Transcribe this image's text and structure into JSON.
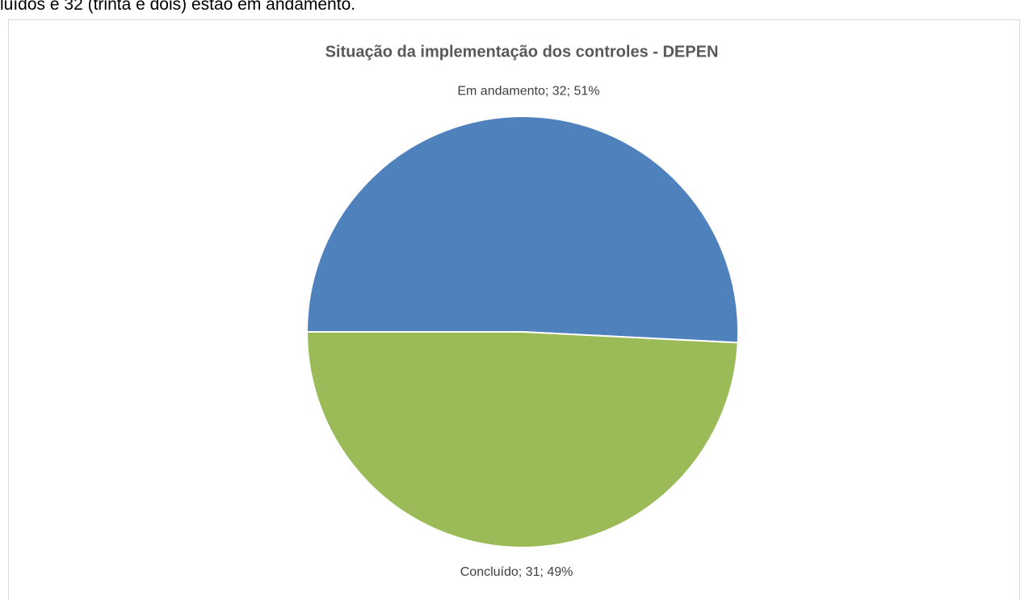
{
  "document": {
    "text": "luídos e 32 (trinta e dois) estão em andamento."
  },
  "chart_data": {
    "type": "pie",
    "title": "Situação da implementação dos controles - DEPEN",
    "categories": [
      "Em andamento",
      "Concluído"
    ],
    "values": [
      32,
      31
    ],
    "value_labels": [
      "Em andamento; 32; 51%",
      "Concluído; 31; 49%"
    ],
    "colors": [
      "#4f81bd",
      "#9bbb59"
    ]
  }
}
